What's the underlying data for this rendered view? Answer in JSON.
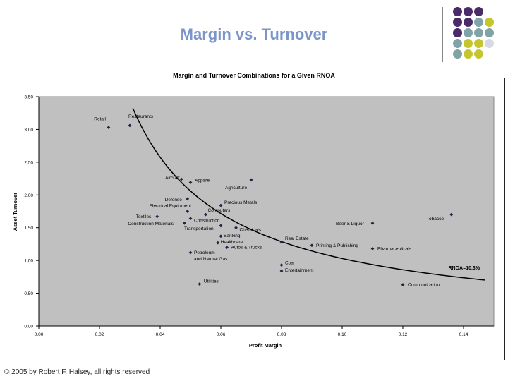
{
  "slide": {
    "title": "Margin vs. Turnover",
    "footer": "© 2005 by Robert F. Halsey, all rights reserved"
  },
  "colors": {
    "title": "#7b95c9",
    "plot_bg": "#c0c0c0",
    "point": "#222244",
    "decor_purple": "#4b2a6a",
    "decor_teal": "#7fa3a6",
    "decor_olive": "#c5c530",
    "decor_light": "#d8d8e4"
  },
  "decor_grid": [
    [
      "decor_purple",
      "decor_purple",
      "decor_purple",
      null
    ],
    [
      "decor_purple",
      "decor_purple",
      "decor_teal",
      "decor_olive"
    ],
    [
      "decor_purple",
      "decor_teal",
      "decor_teal",
      "decor_teal"
    ],
    [
      "decor_teal",
      "decor_olive",
      "decor_olive",
      "decor_light"
    ],
    [
      "decor_teal",
      "decor_olive",
      "decor_olive",
      null
    ]
  ],
  "chart_data": {
    "type": "scatter",
    "title": "Margin and Turnover Combinations for a Given RNOA",
    "xlabel": "Profit Margin",
    "ylabel": "Asset Turnover",
    "xlim": [
      0,
      0.15
    ],
    "ylim": [
      0,
      3.5
    ],
    "x_ticks": [
      0,
      0.02,
      0.04,
      0.06,
      0.08,
      0.1,
      0.12,
      0.14
    ],
    "x_tick_labels": [
      "0.00",
      "0.02",
      "0.04",
      "0.06",
      "0.08",
      "0.10",
      "0.12",
      "0.14"
    ],
    "y_ticks": [
      0,
      0.5,
      1.0,
      1.5,
      2.0,
      2.5,
      3.0,
      3.5
    ],
    "y_tick_labels": [
      "0.00",
      "0.50",
      "1.00",
      "1.50",
      "2.00",
      "2.50",
      "3.00",
      "3.50"
    ],
    "grid": false,
    "points": [
      {
        "label": "Retail",
        "x": 0.023,
        "y": 3.03
      },
      {
        "label": "Restaurants",
        "x": 0.03,
        "y": 3.06
      },
      {
        "label": "Aircraft",
        "x": 0.047,
        "y": 2.24
      },
      {
        "label": "Apparel",
        "x": 0.05,
        "y": 2.19
      },
      {
        "label": "Agriculture",
        "x": 0.07,
        "y": 2.23
      },
      {
        "label": "Defense",
        "x": 0.049,
        "y": 1.94
      },
      {
        "label": "Electrical Equipment",
        "x": 0.049,
        "y": 1.75
      },
      {
        "label": "Precious Metals",
        "x": 0.06,
        "y": 1.84
      },
      {
        "label": "Computers",
        "x": 0.055,
        "y": 1.7
      },
      {
        "label": "Textiles",
        "x": 0.039,
        "y": 1.67
      },
      {
        "label": "Construction",
        "x": 0.05,
        "y": 1.64
      },
      {
        "label": "Construction Materials",
        "x": 0.048,
        "y": 1.57
      },
      {
        "label": "Transportation",
        "x": 0.06,
        "y": 1.53
      },
      {
        "label": "Chemicals",
        "x": 0.065,
        "y": 1.5
      },
      {
        "label": "Banking",
        "x": 0.06,
        "y": 1.37
      },
      {
        "label": "Healthcare",
        "x": 0.059,
        "y": 1.27
      },
      {
        "label": "Autos & Trucks",
        "x": 0.062,
        "y": 1.2
      },
      {
        "label": "Petroleum and Natural Gas",
        "x": 0.05,
        "y": 1.12
      },
      {
        "label": "Real Estate",
        "x": 0.08,
        "y": 1.28
      },
      {
        "label": "Printing & Publishing",
        "x": 0.09,
        "y": 1.23
      },
      {
        "label": "Beer & Liquor",
        "x": 0.11,
        "y": 1.57
      },
      {
        "label": "Pharmaceuticals",
        "x": 0.11,
        "y": 1.18
      },
      {
        "label": "Tobacco",
        "x": 0.136,
        "y": 1.7
      },
      {
        "label": "Coal",
        "x": 0.08,
        "y": 0.93
      },
      {
        "label": "Entertainment",
        "x": 0.08,
        "y": 0.84
      },
      {
        "label": "Utilities",
        "x": 0.053,
        "y": 0.64
      },
      {
        "label": "Communication",
        "x": 0.12,
        "y": 0.63
      }
    ],
    "curve": {
      "label": "RNOA=10.3%",
      "rnoa": 0.103,
      "x_start": 0.031,
      "x_end": 0.147
    }
  }
}
